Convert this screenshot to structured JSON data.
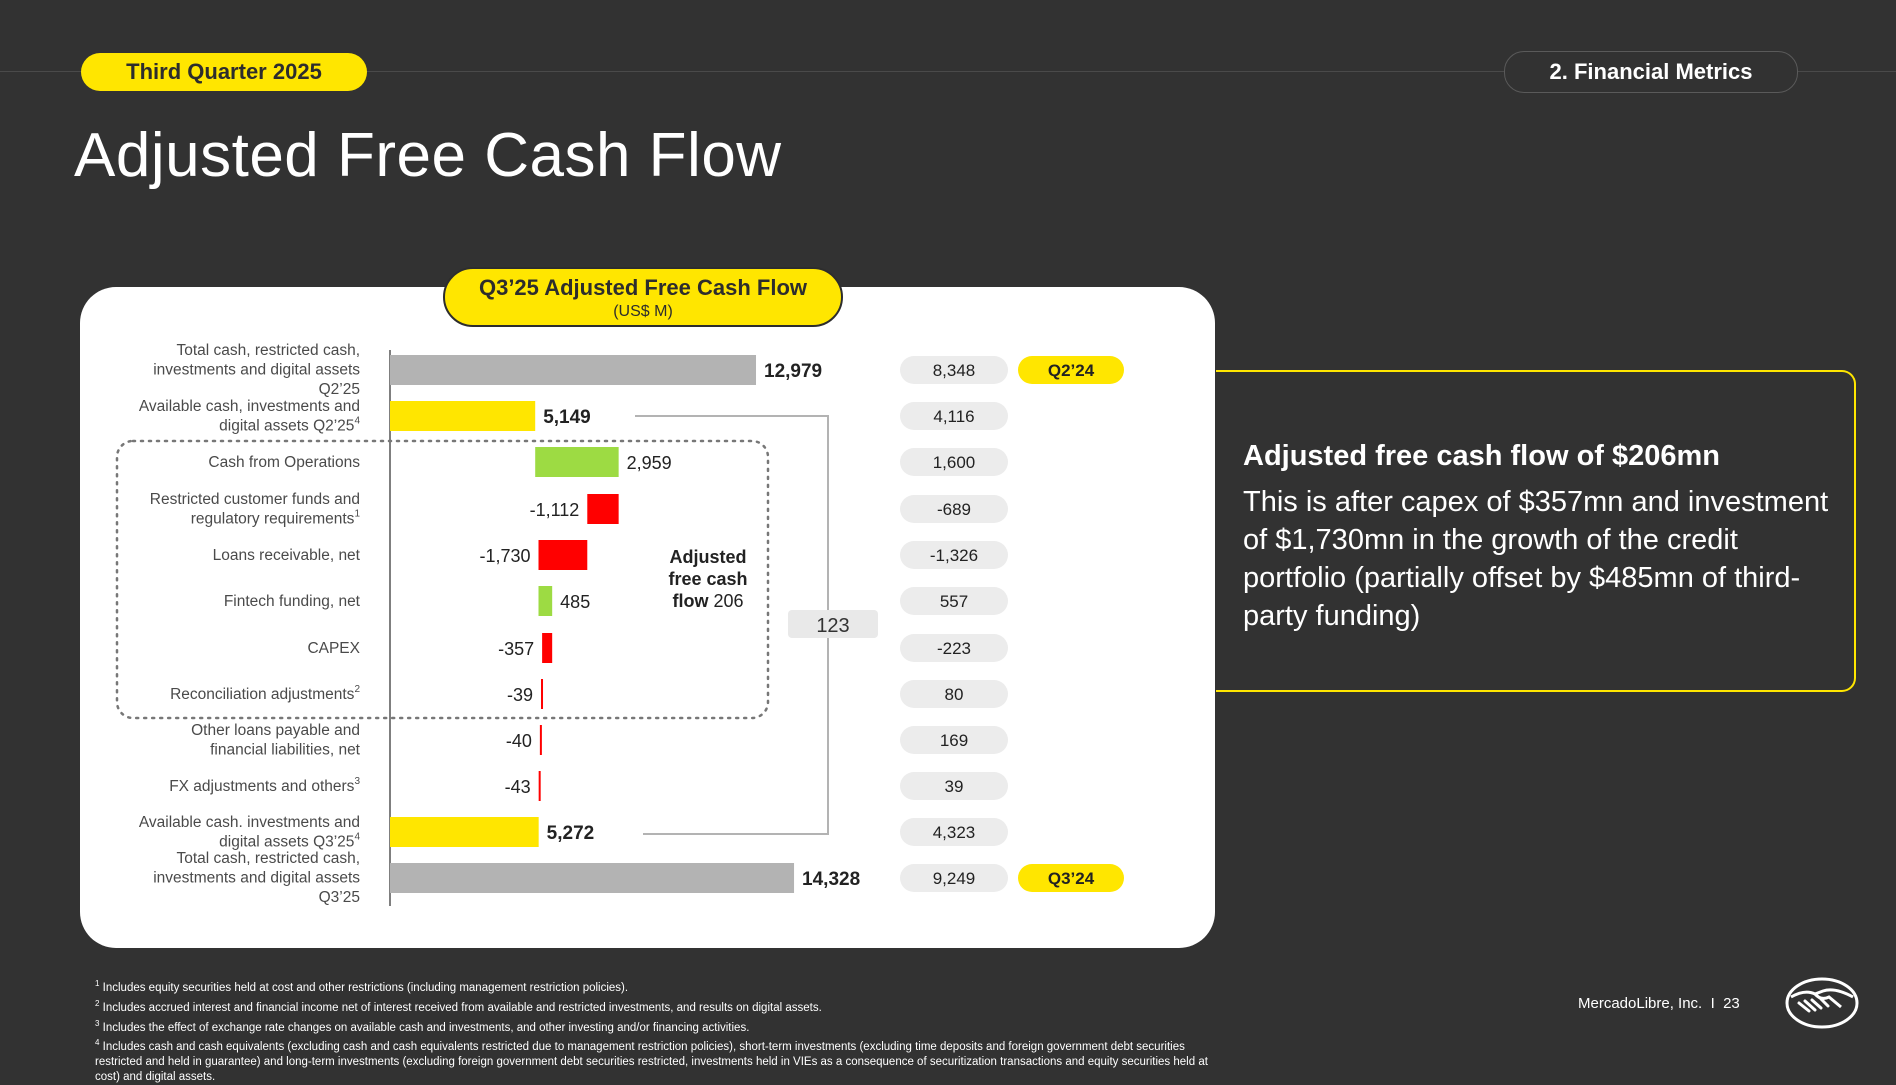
{
  "header": {
    "quarter_label": "Third Quarter 2025",
    "section_label": "2. Financial Metrics",
    "page_title": "Adjusted Free Cash Flow"
  },
  "chart_panel": {
    "title": "Q3’25 Adjusted Free Cash Flow",
    "subtitle": "(US$ M)",
    "bracket_value": "123",
    "group_label_lines": [
      "Adjusted",
      "free cash",
      "flow "
    ],
    "group_value": "206"
  },
  "chart_data": {
    "type": "bar",
    "orientation": "horizontal",
    "unit": "US$ M",
    "categories": [
      {
        "lines": [
          "Total cash, restricted cash,",
          "investments and digital assets",
          "Q2’25"
        ],
        "sup": ""
      },
      {
        "lines": [
          "Available cash, investments and",
          "digital assets Q2’25"
        ],
        "sup": "4"
      },
      {
        "lines": [
          "Cash from Operations"
        ],
        "sup": ""
      },
      {
        "lines": [
          "Restricted customer funds and",
          "regulatory requirements"
        ],
        "sup": "1"
      },
      {
        "lines": [
          "Loans receivable, net"
        ],
        "sup": ""
      },
      {
        "lines": [
          "Fintech funding, net"
        ],
        "sup": ""
      },
      {
        "lines": [
          "CAPEX"
        ],
        "sup": ""
      },
      {
        "lines": [
          "Reconciliation adjustments"
        ],
        "sup": "2"
      },
      {
        "lines": [
          "Other loans payable and",
          "financial liabilities, net"
        ],
        "sup": ""
      },
      {
        "lines": [
          "FX adjustments and others"
        ],
        "sup": "3"
      },
      {
        "lines": [
          "Available cash. investments and",
          "digital assets Q3’25"
        ],
        "sup": "4"
      },
      {
        "lines": [
          "Total cash, restricted cash,",
          "investments and digital assets",
          "Q3’25"
        ],
        "sup": ""
      }
    ],
    "series": [
      {
        "name": "Q3’25",
        "values": [
          12979,
          5149,
          2959,
          -1112,
          -1730,
          485,
          -357,
          -39,
          -40,
          -43,
          5272,
          14328
        ],
        "labels": [
          "12,979",
          "5,149",
          "2,959",
          "-1,112",
          "-1,730",
          "485",
          "-357",
          "-39",
          "-40",
          "-43",
          "5,272",
          "14,328"
        ],
        "bar_kinds": [
          "total",
          "subtotal",
          "delta",
          "delta",
          "delta",
          "delta",
          "delta",
          "delta",
          "delta",
          "delta",
          "subtotal",
          "total"
        ]
      },
      {
        "name": "",
        "values": [
          8348,
          4116,
          1600,
          -689,
          -1326,
          557,
          -223,
          80,
          169,
          39,
          4323,
          9249
        ],
        "labels": [
          "8,348",
          "4,116",
          "1,600",
          "-689",
          "-1,326",
          "557",
          "-223",
          "80",
          "169",
          "39",
          "4,323",
          "9,249"
        ]
      }
    ],
    "compare_tags": {
      "first": "Q2’24",
      "last": "Q3’24"
    },
    "colors": {
      "total": "#b3b3b3",
      "subtotal": "#ffe600",
      "positive": "#9ddb43",
      "negative": "#ff0000"
    }
  },
  "callout": {
    "heading": "Adjusted free cash flow of $206mn",
    "body": "This is after capex of $357mn and investment of $1,730mn in the growth of the credit portfolio (partially offset by $485mn of third-party funding)"
  },
  "footnotes": [
    {
      "num": "1",
      "text": "Includes equity securities held at cost and other restrictions (including management restriction policies)."
    },
    {
      "num": "2",
      "text": "Includes accrued interest and financial income net of interest received from available and restricted investments, and results on digital assets."
    },
    {
      "num": "3",
      "text": "Includes the effect of exchange rate changes on available cash and investments, and other investing and/or financing activities."
    },
    {
      "num": "4",
      "text": "Includes cash and cash equivalents (excluding cash and cash equivalents restricted due to management restriction policies), short-term investments (excluding time deposits and foreign government debt securities restricted and held in guarantee) and long-term investments (excluding foreign government debt securities restricted, investments held in VIEs as a consequence of securitization transactions and equity securities held at cost) and digital assets."
    }
  ],
  "footer": {
    "company": "MercadoLibre, Inc.",
    "separator": "I",
    "page_number": "23",
    "logo_icon": "handshake-icon"
  }
}
